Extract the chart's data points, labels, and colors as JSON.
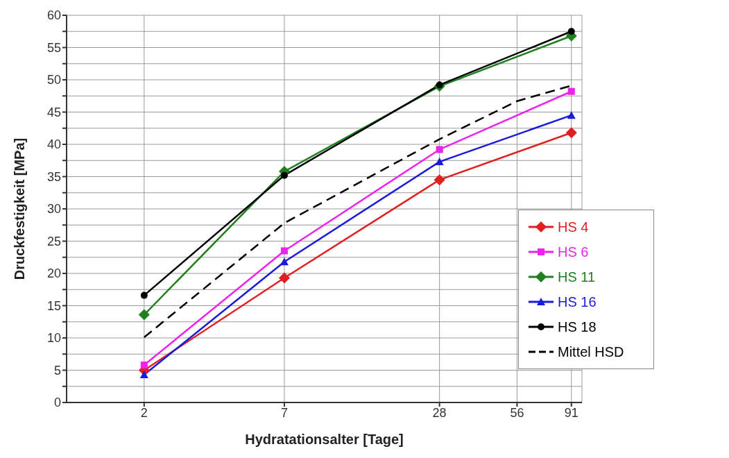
{
  "chart_data": {
    "type": "line",
    "xlabel": "Hydratationsalter [Tage]",
    "ylabel": "Druckfestigkeit [MPa]",
    "x": [
      2,
      7,
      28,
      91
    ],
    "log": "x",
    "xlim": [
      1,
      100
    ],
    "xticks": [
      2,
      7,
      28,
      56,
      91
    ],
    "ylim": [
      0,
      60
    ],
    "yticks": [
      0,
      {
        "value": 2.5,
        "label": null
      },
      5,
      {
        "value": 7.5,
        "label": null
      },
      10,
      {
        "value": 12.5,
        "label": null
      },
      15,
      {
        "value": 17.5,
        "label": null
      },
      20,
      {
        "value": 22.5,
        "label": null
      },
      25,
      {
        "value": 27.5,
        "label": null
      },
      30,
      {
        "value": 32.5,
        "label": null
      },
      35,
      {
        "value": 37.5,
        "label": null
      },
      40,
      {
        "value": 42.5,
        "label": null
      },
      45,
      {
        "value": 47.5,
        "label": null
      },
      50,
      {
        "value": 52.5,
        "label": null
      },
      55,
      {
        "value": 57.5,
        "label": null
      },
      60
    ],
    "grid": true,
    "legend": "bottom right",
    "series": [
      {
        "name": "HS 4",
        "color": "#e02020",
        "marker": "diamond",
        "values": [
          5.0,
          19.3,
          34.5,
          41.8
        ]
      },
      {
        "name": "HS 6",
        "color": "#ee22ee",
        "marker": "square",
        "values": [
          5.8,
          23.5,
          39.2,
          48.2
        ]
      },
      {
        "name": "HS 11",
        "color": "#208020",
        "marker": "diamond",
        "values": [
          13.6,
          35.8,
          49.0,
          56.8
        ]
      },
      {
        "name": "HS 16",
        "color": "#1a1adc",
        "marker": "triangle",
        "values": [
          4.3,
          21.8,
          37.3,
          44.5
        ]
      },
      {
        "name": "HS 18",
        "color": "#000000",
        "marker": "circle",
        "values": [
          16.6,
          35.2,
          49.2,
          57.5
        ]
      },
      {
        "name": "Mittel HSD",
        "color": "#000000",
        "marker": "none",
        "line_style": "dashed",
        "x": [
          2,
          7,
          28,
          56,
          91
        ],
        "values": [
          10.1,
          27.8,
          40.8,
          46.7,
          49.1
        ]
      }
    ]
  }
}
